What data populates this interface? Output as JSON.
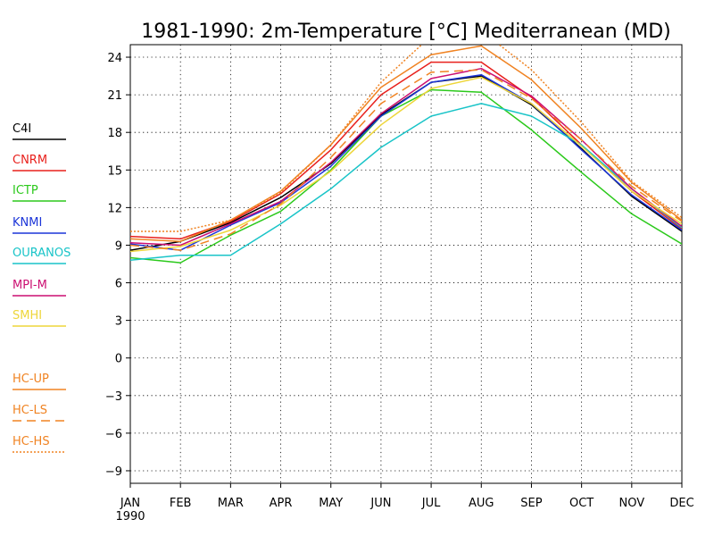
{
  "chart_data": {
    "type": "line",
    "title": "1981-1990: 2m-Temperature [°C] Mediterranean (MD)",
    "xlabel": "",
    "ylabel": "",
    "categories": [
      "JAN",
      "FEB",
      "MAR",
      "APR",
      "MAY",
      "JUN",
      "JUL",
      "AUG",
      "SEP",
      "OCT",
      "NOV",
      "DEC"
    ],
    "x_sublabel": "1990",
    "ylim": [
      -10,
      25
    ],
    "yticks": [
      -9,
      -6,
      -3,
      0,
      3,
      6,
      9,
      12,
      15,
      18,
      21,
      24
    ],
    "grid": true,
    "legend_position": "left",
    "series": [
      {
        "name": "C4I",
        "color": "#000000",
        "dash": "solid",
        "values": [
          8.6,
          9.3,
          10.8,
          12.8,
          15.5,
          19.4,
          22.0,
          22.5,
          20.2,
          16.7,
          12.9,
          10.1
        ]
      },
      {
        "name": "CNRM",
        "color": "#e8201c",
        "dash": "solid",
        "values": [
          9.7,
          9.5,
          10.9,
          13.1,
          16.6,
          21.0,
          23.6,
          23.6,
          20.8,
          17.0,
          13.3,
          10.3
        ]
      },
      {
        "name": "ICTP",
        "color": "#2bc91b",
        "dash": "solid",
        "values": [
          8.0,
          7.6,
          9.8,
          11.7,
          15.0,
          19.3,
          21.4,
          21.2,
          18.2,
          14.8,
          11.5,
          9.1
        ]
      },
      {
        "name": "KNMI",
        "color": "#1c35d8",
        "dash": "solid",
        "values": [
          9.1,
          8.6,
          10.6,
          12.4,
          15.3,
          19.3,
          22.0,
          22.6,
          20.3,
          16.6,
          13.0,
          10.2
        ]
      },
      {
        "name": "OURANOS",
        "color": "#19c4c8",
        "dash": "solid",
        "values": [
          7.8,
          8.2,
          8.2,
          10.7,
          13.5,
          16.8,
          19.3,
          20.3,
          19.3,
          17.0,
          13.5,
          10.4
        ]
      },
      {
        "name": "MPI-M",
        "color": "#cc0f72",
        "dash": "solid",
        "values": [
          9.2,
          9.0,
          10.7,
          12.5,
          15.6,
          19.5,
          22.3,
          23.1,
          20.9,
          17.4,
          13.5,
          10.5
        ]
      },
      {
        "name": "SMHI",
        "color": "#eed63a",
        "dash": "solid",
        "values": [
          8.5,
          8.9,
          10.2,
          12.2,
          14.9,
          18.6,
          21.5,
          22.4,
          20.3,
          16.9,
          13.3,
          10.7
        ]
      },
      {
        "name": "HC-UP",
        "color": "#f08322",
        "dash": "solid",
        "values": [
          9.5,
          9.3,
          11.0,
          13.3,
          17.0,
          21.6,
          24.2,
          24.9,
          22.2,
          18.3,
          14.0,
          11.0
        ]
      },
      {
        "name": "HC-LS",
        "color": "#f08322",
        "dash": "dashed",
        "values": [
          9.0,
          8.6,
          9.9,
          12.3,
          16.0,
          20.3,
          22.8,
          23.0,
          20.7,
          17.4,
          13.7,
          10.9
        ]
      },
      {
        "name": "HC-HS",
        "color": "#f08322",
        "dash": "dotted",
        "values": [
          10.1,
          10.1,
          11.0,
          13.2,
          17.0,
          22.0,
          25.7,
          26.1,
          23.0,
          18.8,
          14.1,
          11.2
        ]
      }
    ]
  }
}
